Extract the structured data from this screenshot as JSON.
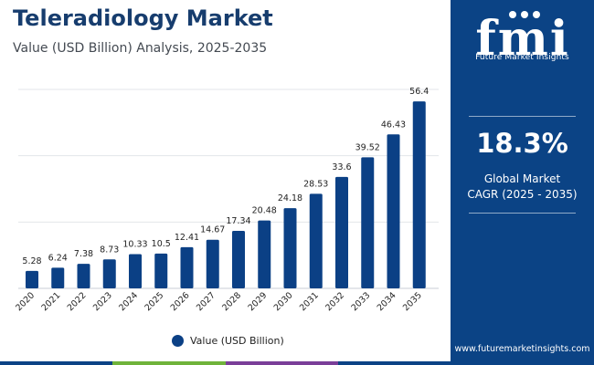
{
  "chart_data": {
    "type": "bar",
    "title": "Teleradiology Market",
    "subtitle": "Value (USD Billion) Analysis, 2025-2035",
    "categories": [
      "2020",
      "2021",
      "2022",
      "2023",
      "2024",
      "2025",
      "2026",
      "2027",
      "2028",
      "2029",
      "2030",
      "2031",
      "2032",
      "2033",
      "2034",
      "2035"
    ],
    "series": [
      {
        "name": "Value (USD Billion)",
        "values": [
          5.28,
          6.24,
          7.38,
          8.73,
          10.33,
          10.5,
          12.41,
          14.67,
          17.34,
          20.48,
          24.18,
          28.53,
          33.6,
          39.52,
          46.43,
          56.4
        ],
        "labels": [
          "5.28",
          "6.24",
          "7.38",
          "8.73",
          "10.33",
          "10.5",
          "12.41",
          "14.67",
          "17.34",
          "20.48",
          "24.18",
          "28.53",
          "33.6",
          "39.52",
          "46.43",
          "56.4"
        ]
      }
    ],
    "ylim": [
      0,
      60
    ],
    "grid": true,
    "legend": "bottom-center",
    "xlabel": "",
    "ylabel": ""
  },
  "colors": {
    "bar": "#0b4085",
    "title": "#173d6e",
    "panel": "#0b4385",
    "grid": "#e3e6ea",
    "stripe": [
      "#0b4385",
      "#6fb33a",
      "#7a3e98",
      "#0b4385"
    ]
  },
  "brand": {
    "logo_text": "fmi",
    "name": "Future Market Insights",
    "url": "www.futuremarketinsights.com"
  },
  "cagr": {
    "value": "18.3%",
    "label_line1": "Global Market",
    "label_line2": "CAGR (2025 - 2035)"
  }
}
